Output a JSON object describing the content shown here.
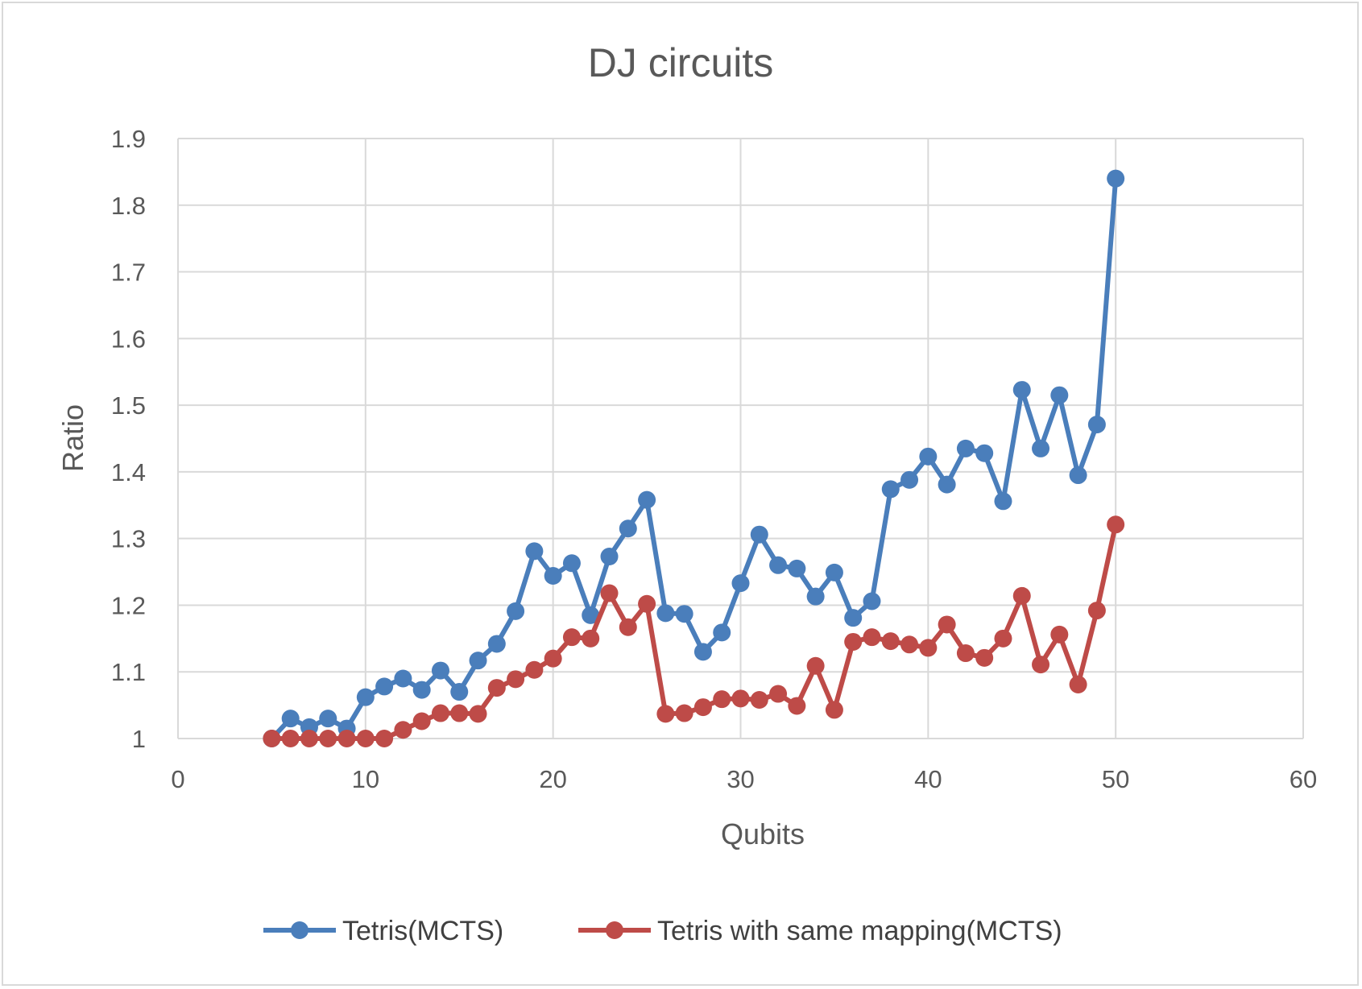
{
  "chart_data": {
    "type": "line",
    "title": "DJ circuits",
    "xlabel": "Qubits",
    "ylabel": "Ratio",
    "xlim": [
      0,
      60
    ],
    "ylim": [
      1,
      1.9
    ],
    "xticks": [
      0,
      10,
      20,
      30,
      40,
      50,
      60
    ],
    "yticks": [
      1,
      1.1,
      1.2,
      1.3,
      1.4,
      1.5,
      1.6,
      1.7,
      1.8,
      1.9
    ],
    "ytick_labels": [
      "1",
      "1.1",
      "1.2",
      "1.3",
      "1.4",
      "1.5",
      "1.6",
      "1.7",
      "1.8",
      "1.9"
    ],
    "grid": true,
    "legend_position": "bottom",
    "x": [
      5,
      6,
      7,
      8,
      9,
      10,
      11,
      12,
      13,
      14,
      15,
      16,
      17,
      18,
      19,
      20,
      21,
      22,
      23,
      24,
      25,
      26,
      27,
      28,
      29,
      30,
      31,
      32,
      33,
      34,
      35,
      36,
      37,
      38,
      39,
      40,
      41,
      42,
      43,
      44,
      45,
      46,
      47,
      48,
      49,
      50
    ],
    "series": [
      {
        "name": "Tetris(MCTS)",
        "color": "#4a7ebb",
        "values": [
          1.0,
          1.03,
          1.017,
          1.03,
          1.015,
          1.062,
          1.078,
          1.09,
          1.073,
          1.102,
          1.07,
          1.117,
          1.142,
          1.191,
          1.281,
          1.244,
          1.263,
          1.185,
          1.273,
          1.315,
          1.358,
          1.188,
          1.187,
          1.13,
          1.159,
          1.233,
          1.306,
          1.26,
          1.255,
          1.213,
          1.249,
          1.181,
          1.206,
          1.374,
          1.388,
          1.423,
          1.381,
          1.435,
          1.428,
          1.356,
          1.523,
          1.435,
          1.515,
          1.395,
          1.471,
          1.84
        ]
      },
      {
        "name": "Tetris with same mapping(MCTS)",
        "color": "#be4b48",
        "values": [
          1.0,
          1.0,
          1.0,
          1.0,
          1.0,
          1.0,
          1.0,
          1.013,
          1.026,
          1.038,
          1.038,
          1.037,
          1.076,
          1.089,
          1.103,
          1.12,
          1.152,
          1.15,
          1.218,
          1.167,
          1.202,
          1.037,
          1.038,
          1.047,
          1.059,
          1.06,
          1.058,
          1.067,
          1.049,
          1.109,
          1.043,
          1.145,
          1.152,
          1.146,
          1.141,
          1.136,
          1.171,
          1.128,
          1.121,
          1.15,
          1.214,
          1.111,
          1.156,
          1.081,
          1.192,
          1.321
        ]
      }
    ]
  },
  "colors": {
    "gridline": "#d9d9d9",
    "text": "#595959",
    "legend_text": "#404040",
    "frame": "#d9d9d9"
  }
}
